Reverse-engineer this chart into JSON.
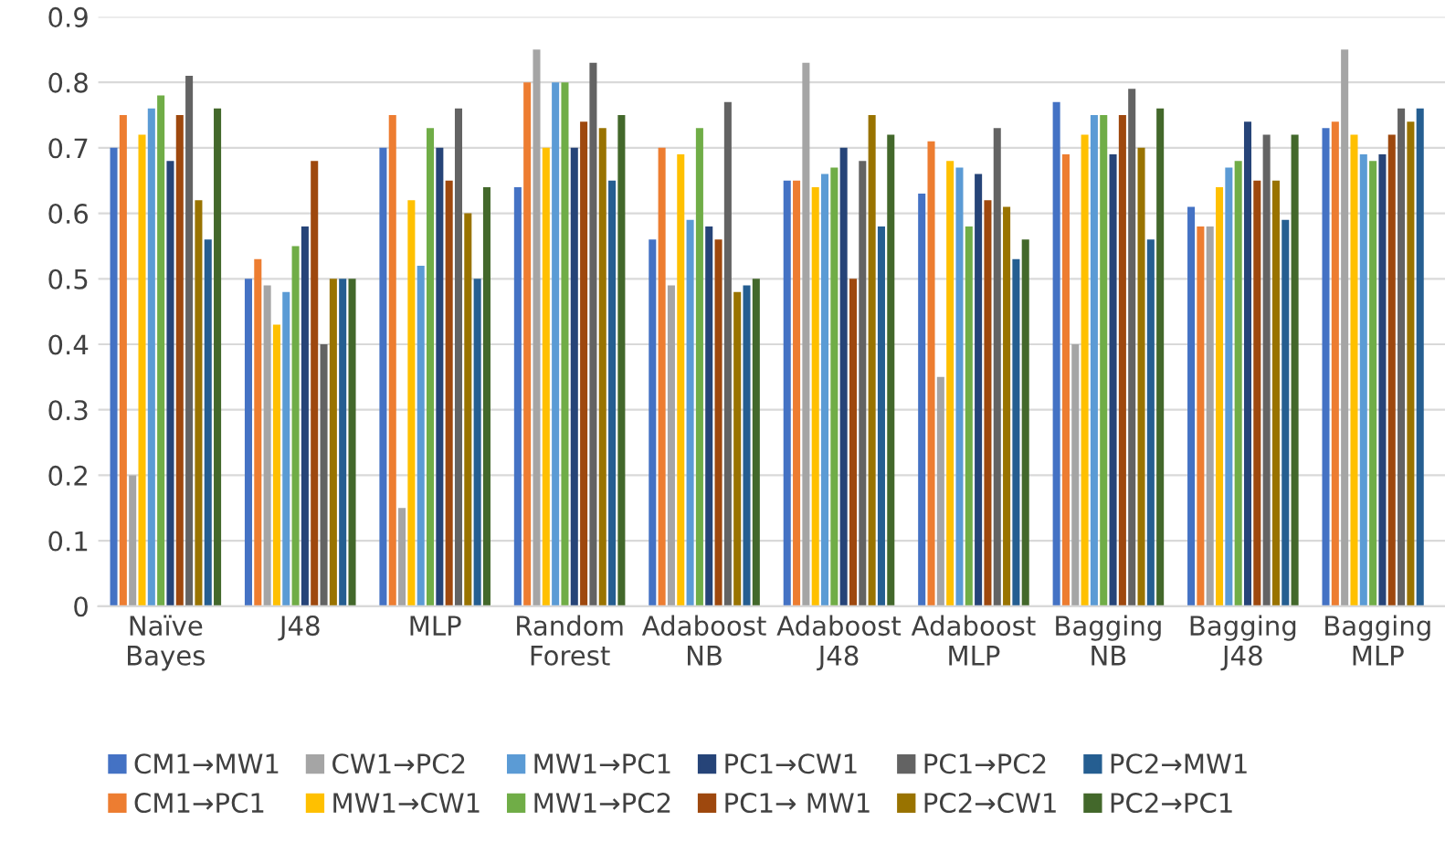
{
  "chart_data": {
    "type": "bar",
    "categories": [
      "Naïve\nBayes",
      "J48",
      "MLP",
      "Random\nForest",
      "Adaboost\nNB",
      "Adaboost\nJ48",
      "Adaboost\nMLP",
      "Bagging\nNB",
      "Bagging\nJ48",
      "Bagging\nMLP"
    ],
    "series": [
      {
        "name": "CM1→MW1",
        "color": "#4472c4",
        "values": [
          0.7,
          0.5,
          0.7,
          0.64,
          0.56,
          0.65,
          0.63,
          0.77,
          0.61,
          0.73
        ]
      },
      {
        "name": "CM1→PC1",
        "color": "#ed7d31",
        "values": [
          0.75,
          0.53,
          0.75,
          0.8,
          0.7,
          0.65,
          0.71,
          0.69,
          0.58,
          0.74
        ]
      },
      {
        "name": "CW1→PC2",
        "color": "#a5a5a5",
        "values": [
          0.2,
          0.49,
          0.15,
          0.85,
          0.49,
          0.83,
          0.35,
          0.4,
          0.58,
          0.85
        ]
      },
      {
        "name": "MW1→CW1",
        "color": "#ffc000",
        "values": [
          0.72,
          0.43,
          0.62,
          0.7,
          0.69,
          0.64,
          0.68,
          0.72,
          0.64,
          0.72
        ]
      },
      {
        "name": "MW1→PC1",
        "color": "#5b9bd5",
        "values": [
          0.76,
          0.48,
          0.52,
          0.8,
          0.59,
          0.66,
          0.67,
          0.75,
          0.67,
          0.69
        ]
      },
      {
        "name": "MW1→PC2",
        "color": "#70ad47",
        "values": [
          0.78,
          0.55,
          0.73,
          0.8,
          0.73,
          0.67,
          0.58,
          0.75,
          0.68,
          0.68
        ]
      },
      {
        "name": "PC1→CW1",
        "color": "#264478",
        "values": [
          0.68,
          0.58,
          0.7,
          0.7,
          0.58,
          0.7,
          0.66,
          0.69,
          0.74,
          0.69
        ]
      },
      {
        "name": "PC1→ MW1",
        "color": "#9e480e",
        "values": [
          0.75,
          0.68,
          0.65,
          0.74,
          0.56,
          0.5,
          0.62,
          0.75,
          0.65,
          0.72
        ]
      },
      {
        "name": "PC1→PC2",
        "color": "#636363",
        "values": [
          0.81,
          0.4,
          0.76,
          0.83,
          0.77,
          0.68,
          0.73,
          0.79,
          0.72,
          0.76
        ]
      },
      {
        "name": "PC2→CW1",
        "color": "#997300",
        "values": [
          0.62,
          0.5,
          0.6,
          0.73,
          0.48,
          0.75,
          0.61,
          0.7,
          0.65,
          0.74
        ]
      },
      {
        "name": "PC2→MW1",
        "color": "#255e91",
        "values": [
          0.56,
          0.5,
          0.5,
          0.65,
          0.49,
          0.58,
          0.53,
          0.56,
          0.59,
          0.76
        ]
      },
      {
        "name": "PC2→PC1",
        "color": "#43682b",
        "values": [
          0.76,
          0.5,
          0.64,
          0.75,
          0.5,
          0.72,
          0.56,
          0.76,
          0.72,
          null
        ]
      }
    ],
    "ylim": [
      0,
      0.9
    ],
    "yticks": [
      0,
      0.1,
      0.2,
      0.3,
      0.4,
      0.5,
      0.6,
      0.7,
      0.8,
      0.9
    ],
    "grid": "y",
    "legend": "bottom"
  }
}
